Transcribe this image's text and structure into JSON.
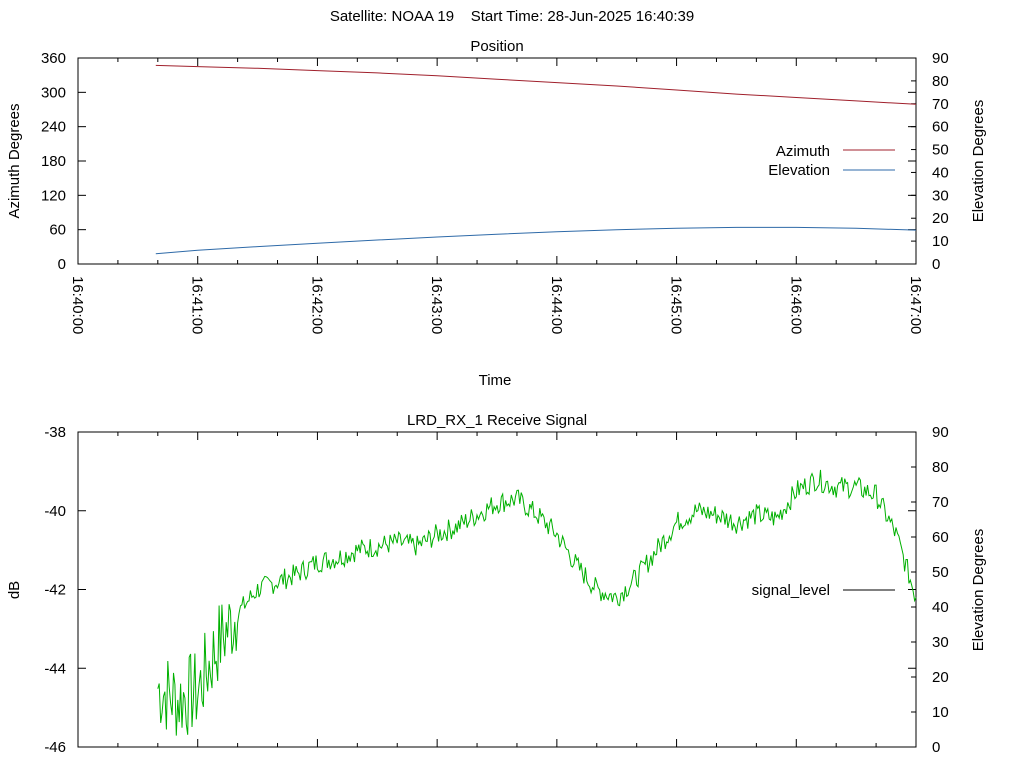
{
  "header": {
    "title": "Satellite: NOAA 19    Start Time: 28-Jun-2025 16:40:39"
  },
  "colors": {
    "azimuth": "#a0202c",
    "elevation": "#2e6aa8",
    "signal": "#00b000",
    "axis": "#000000"
  },
  "chart_data": [
    {
      "type": "line",
      "title": "Position",
      "xlabel": "Time",
      "ylabel": "Azimuth Degrees",
      "y2label": "Elevation Degrees",
      "xlim": [
        "16:40:00",
        "16:47:00"
      ],
      "ylim": [
        0,
        360
      ],
      "y2lim": [
        0,
        90
      ],
      "x_ticks": [
        "16:40:00",
        "16:41:00",
        "16:42:00",
        "16:43:00",
        "16:44:00",
        "16:45:00",
        "16:46:00",
        "16:47:00"
      ],
      "y_ticks": [
        "0",
        "60",
        "120",
        "180",
        "240",
        "300",
        "360"
      ],
      "y2_ticks": [
        "0",
        "10",
        "20",
        "30",
        "40",
        "50",
        "60",
        "70",
        "80",
        "90"
      ],
      "legend_position": "right",
      "series": [
        {
          "name": "Azimuth",
          "axis": "y",
          "x": [
            "16:40:39",
            "16:41:00",
            "16:41:30",
            "16:42:00",
            "16:42:30",
            "16:43:00",
            "16:43:30",
            "16:44:00",
            "16:44:30",
            "16:45:00",
            "16:45:30",
            "16:46:00",
            "16:46:30",
            "16:47:00"
          ],
          "values": [
            347,
            345,
            342,
            338,
            334,
            329,
            323,
            317,
            311,
            304,
            297,
            291,
            285,
            279
          ]
        },
        {
          "name": "Elevation",
          "axis": "y2",
          "x": [
            "16:40:39",
            "16:41:00",
            "16:41:30",
            "16:42:00",
            "16:42:30",
            "16:43:00",
            "16:43:30",
            "16:44:00",
            "16:44:30",
            "16:45:00",
            "16:45:30",
            "16:46:00",
            "16:46:30",
            "16:47:00"
          ],
          "values": [
            4.5,
            6,
            7.6,
            9.1,
            10.5,
            11.8,
            13,
            14.1,
            15,
            15.6,
            16,
            16,
            15.6,
            14.8
          ]
        }
      ]
    },
    {
      "type": "line",
      "title": "LRD_RX_1 Receive Signal",
      "xlabel": "",
      "ylabel": "dB",
      "y2label": "Elevation Degrees",
      "xlim": [
        "16:40:00",
        "16:47:00"
      ],
      "ylim": [
        -46,
        -38
      ],
      "y2lim": [
        0,
        90
      ],
      "y_ticks": [
        "-46",
        "-44",
        "-42",
        "-40",
        "-38"
      ],
      "y2_ticks": [
        "0",
        "10",
        "20",
        "30",
        "40",
        "50",
        "60",
        "70",
        "80",
        "90"
      ],
      "legend_position": "right",
      "series": [
        {
          "name": "signal_level",
          "axis": "y",
          "x": [
            "16:40:40",
            "16:40:50",
            "16:41:00",
            "16:41:10",
            "16:41:20",
            "16:41:30",
            "16:41:40",
            "16:41:50",
            "16:42:00",
            "16:42:10",
            "16:42:20",
            "16:42:30",
            "16:42:40",
            "16:42:50",
            "16:43:00",
            "16:43:10",
            "16:43:20",
            "16:43:30",
            "16:43:40",
            "16:43:50",
            "16:44:00",
            "16:44:10",
            "16:44:20",
            "16:44:30",
            "16:44:40",
            "16:44:50",
            "16:45:00",
            "16:45:10",
            "16:45:20",
            "16:45:30",
            "16:45:40",
            "16:45:50",
            "16:46:00",
            "16:46:10",
            "16:46:20",
            "16:46:30",
            "16:46:40",
            "16:46:50",
            "16:47:00"
          ],
          "values": [
            -44.5,
            -44.8,
            -44.6,
            -43.4,
            -42.6,
            -42.0,
            -41.8,
            -41.6,
            -41.3,
            -41.2,
            -41.0,
            -40.9,
            -40.8,
            -40.9,
            -40.6,
            -40.4,
            -40.1,
            -39.8,
            -39.7,
            -40.1,
            -40.6,
            -41.4,
            -42.0,
            -42.2,
            -41.7,
            -41.0,
            -40.3,
            -40.0,
            -40.1,
            -40.3,
            -40.1,
            -40.2,
            -39.5,
            -39.2,
            -39.4,
            -39.4,
            -39.6,
            -40.6,
            -42.2
          ]
        }
      ]
    }
  ]
}
